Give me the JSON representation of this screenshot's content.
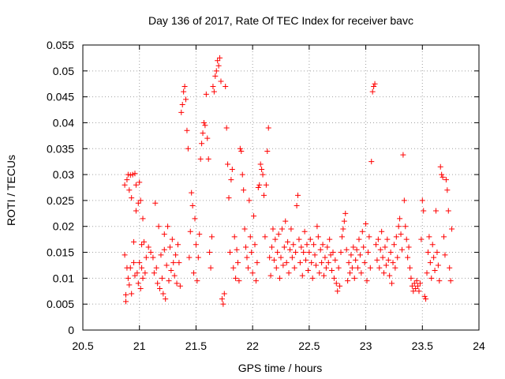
{
  "chart_data": {
    "type": "scatter",
    "title": "Day 136 of 2017, Rate Of TEC Index for receiver bavc",
    "xlabel": "GPS time / hours",
    "ylabel": "ROTI / TECUs",
    "xlim": [
      20.5,
      24
    ],
    "ylim": [
      0,
      0.055
    ],
    "x_ticks": [
      "20.5",
      "21",
      "21.5",
      "22",
      "22.5",
      "23",
      "23.5",
      "24"
    ],
    "y_ticks": [
      "0",
      "0.005",
      "0.01",
      "0.015",
      "0.02",
      "0.025",
      "0.03",
      "0.035",
      "0.04",
      "0.045",
      "0.05",
      "0.055"
    ],
    "grid": true,
    "marker": "plus",
    "marker_color": "#ff0000",
    "series": [
      {
        "points": [
          [
            20.87,
            0.0145
          ],
          [
            20.87,
            0.028
          ],
          [
            20.88,
            0.0068
          ],
          [
            20.88,
            0.0055
          ],
          [
            20.89,
            0.012
          ],
          [
            20.89,
            0.029
          ],
          [
            20.9,
            0.03
          ],
          [
            20.9,
            0.01
          ],
          [
            20.91,
            0.0087
          ],
          [
            20.91,
            0.027
          ],
          [
            20.92,
            0.0299
          ],
          [
            20.92,
            0.012
          ],
          [
            20.93,
            0.0255
          ],
          [
            20.93,
            0.007
          ],
          [
            20.94,
            0.03
          ],
          [
            20.95,
            0.013
          ],
          [
            20.95,
            0.017
          ],
          [
            20.96,
            0.0302
          ],
          [
            20.96,
            0.0105
          ],
          [
            20.97,
            0.023
          ],
          [
            20.97,
            0.028
          ],
          [
            20.98,
            0.011
          ],
          [
            20.99,
            0.0245
          ],
          [
            20.99,
            0.009
          ],
          [
            21.0,
            0.013
          ],
          [
            21.0,
            0.0285
          ],
          [
            21.01,
            0.025
          ],
          [
            21.01,
            0.008
          ],
          [
            21.02,
            0.012
          ],
          [
            21.02,
            0.0165
          ],
          [
            21.03,
            0.01
          ],
          [
            21.03,
            0.0215
          ],
          [
            21.04,
            0.017
          ],
          [
            21.05,
            0.011
          ],
          [
            21.06,
            0.014
          ],
          [
            21.08,
            0.016
          ],
          [
            21.1,
            0.015
          ],
          [
            21.12,
            0.014
          ],
          [
            21.13,
            0.011
          ],
          [
            21.14,
            0.0245
          ],
          [
            21.15,
            0.012
          ],
          [
            21.16,
            0.009
          ],
          [
            21.17,
            0.02
          ],
          [
            21.18,
            0.008
          ],
          [
            21.19,
            0.0145
          ],
          [
            21.2,
            0.01
          ],
          [
            21.21,
            0.007
          ],
          [
            21.22,
            0.0155
          ],
          [
            21.22,
            0.0185
          ],
          [
            21.23,
            0.006
          ],
          [
            21.24,
            0.0125
          ],
          [
            21.25,
            0.02
          ],
          [
            21.26,
            0.0095
          ],
          [
            21.27,
            0.016
          ],
          [
            21.28,
            0.0115
          ],
          [
            21.29,
            0.0175
          ],
          [
            21.3,
            0.013
          ],
          [
            21.31,
            0.0105
          ],
          [
            21.32,
            0.0145
          ],
          [
            21.33,
            0.009
          ],
          [
            21.34,
            0.0165
          ],
          [
            21.35,
            0.013
          ],
          [
            21.36,
            0.0085
          ],
          [
            21.37,
            0.042
          ],
          [
            21.38,
            0.0435
          ],
          [
            21.39,
            0.046
          ],
          [
            21.4,
            0.047
          ],
          [
            21.41,
            0.0445
          ],
          [
            21.42,
            0.0385
          ],
          [
            21.43,
            0.035
          ],
          [
            21.44,
            0.014
          ],
          [
            21.45,
            0.019
          ],
          [
            21.46,
            0.0265
          ],
          [
            21.47,
            0.024
          ],
          [
            21.48,
            0.011
          ],
          [
            21.49,
            0.0215
          ],
          [
            21.5,
            0.0165
          ],
          [
            21.51,
            0.0095
          ],
          [
            21.52,
            0.014
          ],
          [
            21.53,
            0.0185
          ],
          [
            21.54,
            0.033
          ],
          [
            21.55,
            0.036
          ],
          [
            21.56,
            0.038
          ],
          [
            21.57,
            0.04
          ],
          [
            21.58,
            0.0395
          ],
          [
            21.59,
            0.0455
          ],
          [
            21.6,
            0.037
          ],
          [
            21.61,
            0.033
          ],
          [
            21.62,
            0.015
          ],
          [
            21.63,
            0.012
          ],
          [
            21.64,
            0.018
          ],
          [
            21.65,
            0.047
          ],
          [
            21.66,
            0.046
          ],
          [
            21.67,
            0.049
          ],
          [
            21.68,
            0.05
          ],
          [
            21.69,
            0.052
          ],
          [
            21.7,
            0.051
          ],
          [
            21.71,
            0.0525
          ],
          [
            21.72,
            0.048
          ],
          [
            21.73,
            0.006
          ],
          [
            21.74,
            0.005
          ],
          [
            21.75,
            0.007
          ],
          [
            21.76,
            0.047
          ],
          [
            21.77,
            0.039
          ],
          [
            21.78,
            0.032
          ],
          [
            21.79,
            0.0255
          ],
          [
            21.8,
            0.015
          ],
          [
            21.81,
            0.029
          ],
          [
            21.82,
            0.031
          ],
          [
            21.83,
            0.012
          ],
          [
            21.84,
            0.018
          ],
          [
            21.85,
            0.01
          ],
          [
            21.86,
            0.0155
          ],
          [
            21.87,
            0.013
          ],
          [
            21.88,
            0.0095
          ],
          [
            21.89,
            0.035
          ],
          [
            21.9,
            0.0345
          ],
          [
            21.91,
            0.03
          ],
          [
            21.92,
            0.027
          ],
          [
            21.93,
            0.0195
          ],
          [
            21.94,
            0.016
          ],
          [
            21.95,
            0.014
          ],
          [
            21.96,
            0.012
          ],
          [
            21.97,
            0.025
          ],
          [
            21.98,
            0.018
          ],
          [
            21.99,
            0.015
          ],
          [
            22.0,
            0.011
          ],
          [
            22.01,
            0.022
          ],
          [
            22.02,
            0.0165
          ],
          [
            22.03,
            0.0095
          ],
          [
            22.04,
            0.013
          ],
          [
            22.05,
            0.0275
          ],
          [
            22.06,
            0.028
          ],
          [
            22.07,
            0.032
          ],
          [
            22.08,
            0.031
          ],
          [
            22.09,
            0.03
          ],
          [
            22.1,
            0.026
          ],
          [
            22.11,
            0.018
          ],
          [
            22.12,
            0.028
          ],
          [
            22.13,
            0.0345
          ],
          [
            22.14,
            0.039
          ],
          [
            22.15,
            0.014
          ],
          [
            22.16,
            0.0105
          ],
          [
            22.17,
            0.016
          ],
          [
            22.18,
            0.0195
          ],
          [
            22.19,
            0.0135
          ],
          [
            22.2,
            0.0175
          ],
          [
            22.21,
            0.012
          ],
          [
            22.22,
            0.015
          ],
          [
            22.23,
            0.0185
          ],
          [
            22.24,
            0.01
          ],
          [
            22.25,
            0.014
          ],
          [
            22.26,
            0.0195
          ],
          [
            22.27,
            0.0125
          ],
          [
            22.28,
            0.016
          ],
          [
            22.29,
            0.021
          ],
          [
            22.3,
            0.013
          ],
          [
            22.31,
            0.017
          ],
          [
            22.32,
            0.011
          ],
          [
            22.33,
            0.0155
          ],
          [
            22.34,
            0.0195
          ],
          [
            22.35,
            0.014
          ],
          [
            22.36,
            0.0165
          ],
          [
            22.37,
            0.012
          ],
          [
            22.38,
            0.015
          ],
          [
            22.39,
            0.024
          ],
          [
            22.4,
            0.026
          ],
          [
            22.41,
            0.0175
          ],
          [
            22.42,
            0.013
          ],
          [
            22.43,
            0.016
          ],
          [
            22.44,
            0.0105
          ],
          [
            22.45,
            0.015
          ],
          [
            22.46,
            0.019
          ],
          [
            22.47,
            0.0135
          ],
          [
            22.48,
            0.0165
          ],
          [
            22.49,
            0.0115
          ],
          [
            22.5,
            0.015
          ],
          [
            22.51,
            0.0175
          ],
          [
            22.52,
            0.013
          ],
          [
            22.53,
            0.01
          ],
          [
            22.54,
            0.0165
          ],
          [
            22.55,
            0.0145
          ],
          [
            22.56,
            0.0125
          ],
          [
            22.57,
            0.02
          ],
          [
            22.58,
            0.018
          ],
          [
            22.59,
            0.011
          ],
          [
            22.6,
            0.0155
          ],
          [
            22.61,
            0.013
          ],
          [
            22.62,
            0.0165
          ],
          [
            22.63,
            0.0105
          ],
          [
            22.64,
            0.014
          ],
          [
            22.65,
            0.012
          ],
          [
            22.66,
            0.016
          ],
          [
            22.67,
            0.013
          ],
          [
            22.68,
            0.0175
          ],
          [
            22.69,
            0.0145
          ],
          [
            22.7,
            0.0115
          ],
          [
            22.71,
            0.015
          ],
          [
            22.72,
            0.01
          ],
          [
            22.73,
            0.0135
          ],
          [
            22.74,
            0.009
          ],
          [
            22.75,
            0.0075
          ],
          [
            22.76,
            0.012
          ],
          [
            22.77,
            0.0085
          ],
          [
            22.78,
            0.015
          ],
          [
            22.79,
            0.018
          ],
          [
            22.8,
            0.0195
          ],
          [
            22.81,
            0.021
          ],
          [
            22.82,
            0.0225
          ],
          [
            22.83,
            0.0155
          ],
          [
            22.84,
            0.0095
          ],
          [
            22.85,
            0.013
          ],
          [
            22.86,
            0.011
          ],
          [
            22.87,
            0.0145
          ],
          [
            22.88,
            0.012
          ],
          [
            22.89,
            0.016
          ],
          [
            22.9,
            0.01
          ],
          [
            22.91,
            0.0135
          ],
          [
            22.92,
            0.0155
          ],
          [
            22.93,
            0.012
          ],
          [
            22.94,
            0.0175
          ],
          [
            22.95,
            0.0145
          ],
          [
            22.96,
            0.011
          ],
          [
            22.97,
            0.019
          ],
          [
            22.98,
            0.016
          ],
          [
            22.99,
            0.013
          ],
          [
            23.0,
            0.0205
          ],
          [
            23.01,
            0.0095
          ],
          [
            23.02,
            0.015
          ],
          [
            23.03,
            0.018
          ],
          [
            23.04,
            0.012
          ],
          [
            23.05,
            0.0325
          ],
          [
            23.06,
            0.046
          ],
          [
            23.07,
            0.047
          ],
          [
            23.08,
            0.0475
          ],
          [
            23.09,
            0.0165
          ],
          [
            23.1,
            0.0135
          ],
          [
            23.11,
            0.0175
          ],
          [
            23.12,
            0.012
          ],
          [
            23.13,
            0.0155
          ],
          [
            23.14,
            0.019
          ],
          [
            23.15,
            0.014
          ],
          [
            23.16,
            0.011
          ],
          [
            23.17,
            0.016
          ],
          [
            23.18,
            0.0125
          ],
          [
            23.19,
            0.0175
          ],
          [
            23.2,
            0.0135
          ],
          [
            23.21,
            0.0105
          ],
          [
            23.22,
            0.015
          ],
          [
            23.23,
            0.009
          ],
          [
            23.24,
            0.013
          ],
          [
            23.25,
            0.0165
          ],
          [
            23.26,
            0.012
          ],
          [
            23.27,
            0.018
          ],
          [
            23.28,
            0.014
          ],
          [
            23.29,
            0.02
          ],
          [
            23.3,
            0.0215
          ],
          [
            23.31,
            0.0185
          ],
          [
            23.32,
            0.0155
          ],
          [
            23.33,
            0.0338
          ],
          [
            23.34,
            0.025
          ],
          [
            23.35,
            0.02
          ],
          [
            23.36,
            0.0175
          ],
          [
            23.37,
            0.014
          ],
          [
            23.38,
            0.016
          ],
          [
            23.39,
            0.012
          ],
          [
            23.4,
            0.01
          ],
          [
            23.41,
            0.0085
          ],
          [
            23.42,
            0.0075
          ],
          [
            23.43,
            0.009
          ],
          [
            23.44,
            0.008
          ],
          [
            23.45,
            0.0095
          ],
          [
            23.46,
            0.0085
          ],
          [
            23.47,
            0.0075
          ],
          [
            23.48,
            0.009
          ],
          [
            23.49,
            0.0175
          ],
          [
            23.5,
            0.025
          ],
          [
            23.51,
            0.023
          ],
          [
            23.52,
            0.0065
          ],
          [
            23.53,
            0.006
          ],
          [
            23.54,
            0.011
          ],
          [
            23.55,
            0.015
          ],
          [
            23.56,
            0.018
          ],
          [
            23.57,
            0.013
          ],
          [
            23.58,
            0.01
          ],
          [
            23.59,
            0.0165
          ],
          [
            23.6,
            0.014
          ],
          [
            23.61,
            0.0115
          ],
          [
            23.62,
            0.023
          ],
          [
            23.63,
            0.015
          ],
          [
            23.64,
            0.0125
          ],
          [
            23.65,
            0.0095
          ],
          [
            23.66,
            0.0315
          ],
          [
            23.67,
            0.03
          ],
          [
            23.68,
            0.0295
          ],
          [
            23.69,
            0.018
          ],
          [
            23.7,
            0.0145
          ],
          [
            23.71,
            0.029
          ],
          [
            23.72,
            0.027
          ],
          [
            23.73,
            0.023
          ],
          [
            23.74,
            0.012
          ],
          [
            23.75,
            0.0095
          ],
          [
            23.76,
            0.0195
          ]
        ]
      }
    ]
  }
}
